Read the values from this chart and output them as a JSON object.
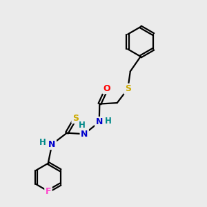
{
  "background_color": "#ebebeb",
  "atom_colors": {
    "C": "#000000",
    "N": "#0000cc",
    "O": "#ff0000",
    "S": "#ccaa00",
    "F": "#ff44cc",
    "H": "#008888"
  },
  "fig_width": 3.0,
  "fig_height": 3.0,
  "dpi": 100,
  "bond_lw": 1.6,
  "font_size": 8.5
}
